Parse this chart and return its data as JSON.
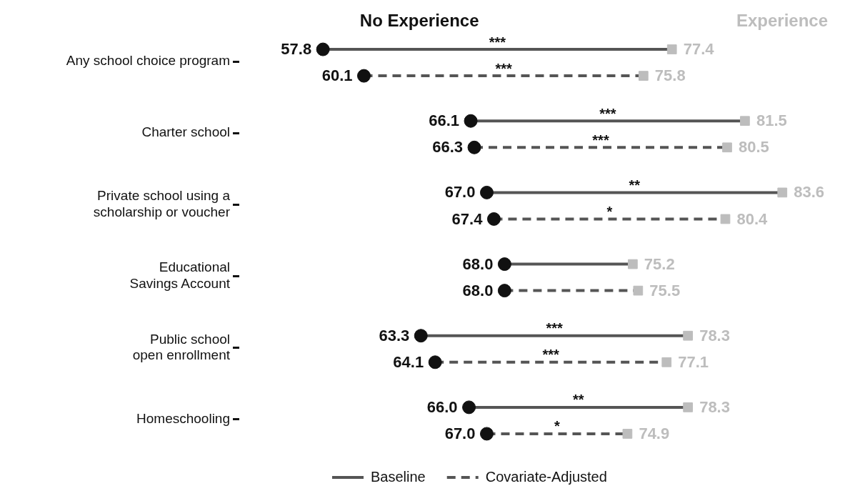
{
  "chart_data": {
    "type": "scatter",
    "orientation": "horizontal",
    "legend": "top",
    "categories": [
      "Any school choice program",
      "Charter school",
      "Private school using a\nscholarship or voucher",
      "Educational\nSavings Account",
      "Public school\nopen enrollment",
      "Homeschooling"
    ],
    "series": [
      {
        "name": "No Experience",
        "color": "#111111",
        "marker": "circle",
        "line_style": "solid",
        "values": [
          57.8,
          66.1,
          67.0,
          68.0,
          63.3,
          66.0
        ],
        "value_labels": [
          "57.8",
          "66.1",
          "67.0",
          "68.0",
          "63.3",
          "66.0"
        ]
      },
      {
        "name": "Experience",
        "color": "#bdbdbd",
        "marker": "square",
        "values": [
          77.4,
          81.5,
          83.6,
          75.2,
          78.3,
          78.3
        ],
        "value_labels": [
          "77.4",
          "81.5",
          "83.6",
          "75.2",
          "78.3",
          "78.3"
        ]
      },
      {
        "color": "#111111",
        "marker": "circle",
        "line_style": "dashed",
        "values": [
          60.1,
          66.3,
          67.4,
          68.0,
          64.1,
          67.0
        ],
        "value_labels": [
          "60.1",
          "66.3",
          "67.4",
          "68.0",
          "64.1",
          "67.0"
        ]
      },
      {
        "color": "#bdbdbd",
        "marker": "square",
        "values": [
          75.8,
          80.5,
          80.4,
          75.5,
          77.1,
          74.9
        ],
        "value_labels": [
          "75.8",
          "80.5",
          "80.4",
          "75.5",
          "77.1",
          "74.9"
        ]
      }
    ],
    "annotations": [
      "Baseline",
      "Covariate-Adjusted",
      "***",
      "***",
      "***",
      "***",
      "**",
      "*",
      "***",
      "***",
      "**",
      "*"
    ]
  }
}
